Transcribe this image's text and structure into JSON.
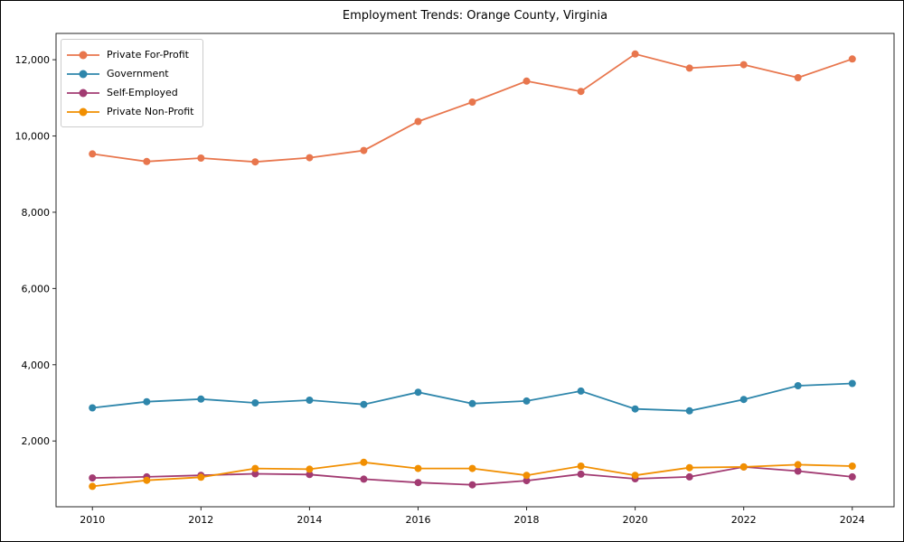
{
  "title": "Employment Trends: Orange County, Virginia",
  "colors": {
    "for_profit": "#e8764d",
    "government": "#2e86ab",
    "self_employed": "#a23b72",
    "non_profit": "#f18f01",
    "axis": "#262626",
    "legend_border": "#cccccc"
  },
  "chart_data": {
    "type": "line",
    "title": "Employment Trends: Orange County, Virginia",
    "xlabel": "",
    "ylabel": "",
    "x": [
      2010,
      2011,
      2012,
      2013,
      2014,
      2015,
      2016,
      2017,
      2018,
      2019,
      2020,
      2021,
      2022,
      2023,
      2024
    ],
    "series": [
      {
        "name": "Private For-Profit",
        "color": "#e8764d",
        "values": [
          9530,
          9330,
          9420,
          9320,
          9430,
          9620,
          10380,
          10890,
          11440,
          11170,
          12150,
          11780,
          11870,
          11530,
          12020
        ]
      },
      {
        "name": "Government",
        "color": "#2e86ab",
        "values": [
          2870,
          3030,
          3100,
          3000,
          3070,
          2960,
          3280,
          2980,
          3050,
          3310,
          2840,
          2790,
          3090,
          3450,
          3510
        ]
      },
      {
        "name": "Self-Employed",
        "color": "#a23b72",
        "values": [
          1030,
          1060,
          1100,
          1140,
          1120,
          1000,
          910,
          850,
          960,
          1130,
          1010,
          1060,
          1320,
          1210,
          1060
        ]
      },
      {
        "name": "Private Non-Profit",
        "color": "#f18f01",
        "values": [
          810,
          970,
          1050,
          1280,
          1260,
          1440,
          1280,
          1280,
          1100,
          1340,
          1100,
          1300,
          1320,
          1380,
          1340
        ]
      }
    ],
    "x_ticks": [
      2010,
      2012,
      2014,
      2016,
      2018,
      2020,
      2022,
      2024
    ],
    "y_ticks": [
      2000,
      4000,
      6000,
      8000,
      10000,
      12000
    ],
    "y_tick_labels": [
      "2,000",
      "4,000",
      "6,000",
      "8,000",
      "10,000",
      "12,000"
    ],
    "xlim": [
      2009.33,
      2024.77
    ],
    "ylim": [
      275,
      12690
    ],
    "grid": false,
    "legend_position": "upper left",
    "marker": "circle",
    "line_width": 1.8,
    "marker_radius": 4
  }
}
